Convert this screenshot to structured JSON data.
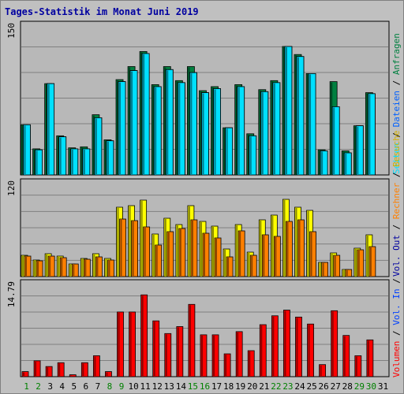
{
  "title": "Tages-Statistik im Monat Juni 2019",
  "colors": {
    "anfragen": "#008040",
    "dateien": "#00c0ff",
    "seiten": "#00e0ff",
    "besuche": "#ffff00",
    "rechner": "#ff8000",
    "volumen": "#ff0000",
    "weekend_label": "#008000",
    "weekday_label": "#000000"
  },
  "legend_top": {
    "anfragen": "Anfragen",
    "dateien": "Dateien",
    "seiten": "Seiten"
  },
  "legend_mid": {
    "besuche": "Besuche",
    "rechner": "Rechner",
    "out": "Vol. Out"
  },
  "legend_bottom": {
    "in": "Vol. In",
    "volumen": "Volumen"
  },
  "legend_separator": "/",
  "chart_data": [
    {
      "type": "bar",
      "panel": "top",
      "ymax_label": "150",
      "ylim": [
        0,
        150
      ],
      "categories": [
        "1",
        "2",
        "3",
        "4",
        "5",
        "6",
        "7",
        "8",
        "9",
        "10",
        "11",
        "12",
        "13",
        "14",
        "15",
        "16",
        "17",
        "18",
        "19",
        "20",
        "21",
        "22",
        "23",
        "24",
        "25",
        "26",
        "27",
        "28",
        "29",
        "30",
        "31"
      ],
      "series": [
        {
          "name": "Anfragen",
          "values": [
            50,
            26,
            91,
            39,
            27,
            28,
            60,
            35,
            95,
            108,
            123,
            90,
            108,
            94,
            108,
            84,
            88,
            47,
            90,
            41,
            85,
            94,
            128,
            120,
            101,
            25,
            93,
            24,
            49,
            82,
            0
          ]
        },
        {
          "name": "Dateien",
          "values": [
            50,
            25,
            91,
            38,
            26,
            26,
            57,
            34,
            93,
            104,
            121,
            88,
            105,
            92,
            102,
            82,
            86,
            47,
            88,
            39,
            83,
            92,
            128,
            118,
            101,
            24,
            68,
            22,
            49,
            81,
            0
          ]
        },
        {
          "name": "Seiten",
          "values": [
            50,
            25,
            91,
            38,
            26,
            26,
            57,
            34,
            93,
            104,
            121,
            88,
            105,
            92,
            102,
            82,
            86,
            47,
            88,
            39,
            83,
            92,
            128,
            118,
            101,
            24,
            68,
            22,
            49,
            81,
            0
          ]
        }
      ]
    },
    {
      "type": "bar",
      "panel": "middle",
      "ymax_label": "120",
      "ylim": [
        0,
        120
      ],
      "categories": [
        "1",
        "2",
        "3",
        "4",
        "5",
        "6",
        "7",
        "8",
        "9",
        "10",
        "11",
        "12",
        "13",
        "14",
        "15",
        "16",
        "17",
        "18",
        "19",
        "20",
        "21",
        "22",
        "23",
        "24",
        "25",
        "26",
        "27",
        "28",
        "29",
        "30",
        "31"
      ],
      "series": [
        {
          "name": "Besuche",
          "values": [
            27,
            21,
            29,
            26,
            16,
            23,
            29,
            23,
            88,
            90,
            97,
            54,
            74,
            66,
            90,
            70,
            64,
            35,
            66,
            31,
            72,
            78,
            98,
            88,
            84,
            18,
            30,
            9,
            36,
            53,
            0
          ]
        },
        {
          "name": "Rechner",
          "values": [
            26,
            20,
            26,
            24,
            16,
            22,
            25,
            21,
            73,
            71,
            63,
            40,
            57,
            61,
            72,
            55,
            49,
            25,
            58,
            27,
            53,
            51,
            70,
            72,
            57,
            18,
            27,
            9,
            34,
            38,
            0
          ]
        }
      ]
    },
    {
      "type": "bar",
      "panel": "bottom",
      "ymax_label": "14.79",
      "ylim": [
        0,
        14.79
      ],
      "categories": [
        "1",
        "2",
        "3",
        "4",
        "5",
        "6",
        "7",
        "8",
        "9",
        "10",
        "11",
        "12",
        "13",
        "14",
        "15",
        "16",
        "17",
        "18",
        "19",
        "20",
        "21",
        "22",
        "23",
        "24",
        "25",
        "26",
        "27",
        "28",
        "29",
        "30",
        "31"
      ],
      "series": [
        {
          "name": "Volumen",
          "values": [
            0.8,
            2.5,
            1.6,
            2.2,
            0.3,
            2.2,
            3.3,
            0.8,
            10.2,
            10.2,
            12.9,
            8.8,
            6.8,
            7.9,
            11.4,
            6.6,
            6.6,
            3.6,
            7.1,
            4.1,
            8.2,
            9.6,
            10.5,
            9.4,
            8.3,
            1.9,
            10.4,
            6.5,
            3.3,
            5.8,
            0
          ]
        }
      ]
    }
  ]
}
